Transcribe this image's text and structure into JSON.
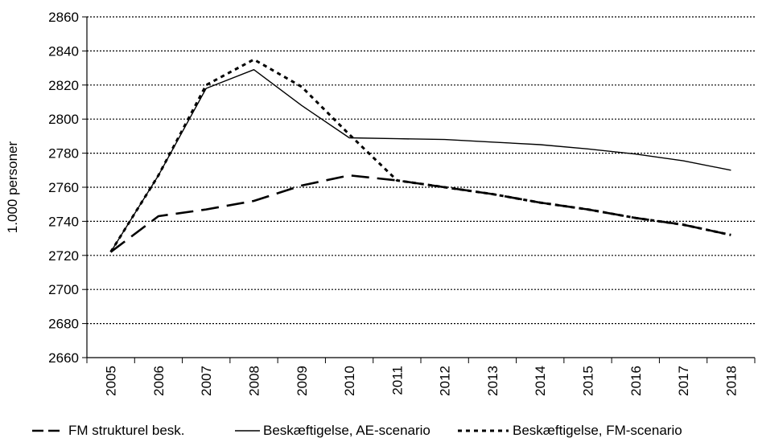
{
  "chart_data": {
    "type": "line",
    "title": "",
    "xlabel": "",
    "ylabel": "1.000 personer",
    "x": [
      "2005",
      "2006",
      "2007",
      "2008",
      "2009",
      "2010",
      "2011",
      "2012",
      "2013",
      "2014",
      "2015",
      "2016",
      "2017",
      "2018"
    ],
    "ylim": [
      2660,
      2860
    ],
    "yticks": [
      2660,
      2680,
      2700,
      2720,
      2740,
      2760,
      2780,
      2800,
      2820,
      2840,
      2860
    ],
    "grid": "horizontal dotted",
    "legend_position": "bottom",
    "series": [
      {
        "name": "FM strukturel besk.",
        "style": "dashed",
        "color": "#000000",
        "values": [
          2722,
          2743,
          2747,
          2752,
          2761,
          2767,
          2764,
          2760,
          2756,
          2751,
          2747,
          2742,
          2738,
          2732
        ]
      },
      {
        "name": "Beskæftigelse, AE-scenario",
        "style": "solid",
        "color": "#000000",
        "values": [
          2722,
          2767,
          2818,
          2829,
          2808,
          2789,
          2788.5,
          2788,
          2786.5,
          2785,
          2782.5,
          2779.5,
          2775.5,
          2770
        ]
      },
      {
        "name": "Beskæftigelse, FM-scenario",
        "style": "dotted",
        "color": "#000000",
        "values": [
          2722,
          2767,
          2820,
          2835,
          2819,
          2791,
          2764,
          2760,
          2756,
          2751,
          2747,
          2742,
          2738,
          2732
        ]
      }
    ]
  }
}
